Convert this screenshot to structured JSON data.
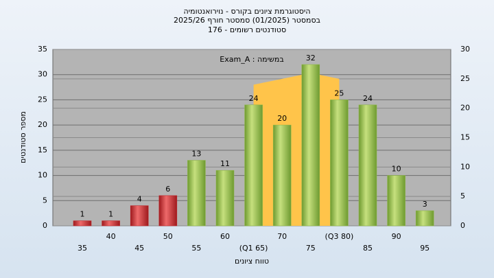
{
  "chart_data": {
    "type": "bar",
    "title": [
      "היסטוגרמת ציונים בקורס - נוירואנטומיה",
      "בסמסטר  (01/2025)  סמסטר חורף 2025/26",
      "סטודנטים רשומים - 176"
    ],
    "annotation": "במשימה : Exam_A",
    "x_label": "טווח ציונים",
    "y_label": "מספר סטודנטים",
    "categories": [
      "35",
      "40",
      "45",
      "50",
      "55",
      "60",
      "(Q1 65)",
      "70",
      "75",
      "(Q3 80)",
      "85",
      "90",
      "95"
    ],
    "values": [
      1,
      1,
      4,
      6,
      13,
      11,
      24,
      20,
      32,
      25,
      24,
      10,
      3
    ],
    "colors": [
      "#c0282c",
      "#c0282c",
      "#c0282c",
      "#c0282c",
      "#8fb84a",
      "#8fb84a",
      "#8fb84a",
      "#8fb84a",
      "#8fb84a",
      "#8fb84a",
      "#8fb84a",
      "#8fb84a",
      "#8fb84a"
    ],
    "band_series": {
      "color": "#ffc44a",
      "axis": "y2",
      "values": [
        null,
        null,
        null,
        null,
        null,
        null,
        24,
        25,
        26,
        25,
        null,
        null,
        null
      ]
    },
    "ylim": [
      0,
      35
    ],
    "yticks": [
      0,
      5,
      10,
      15,
      20,
      25,
      30,
      35
    ],
    "y2lim": [
      0,
      30
    ],
    "y2ticks": [
      0,
      5,
      10,
      15,
      20,
      25,
      30
    ],
    "grid": true
  }
}
